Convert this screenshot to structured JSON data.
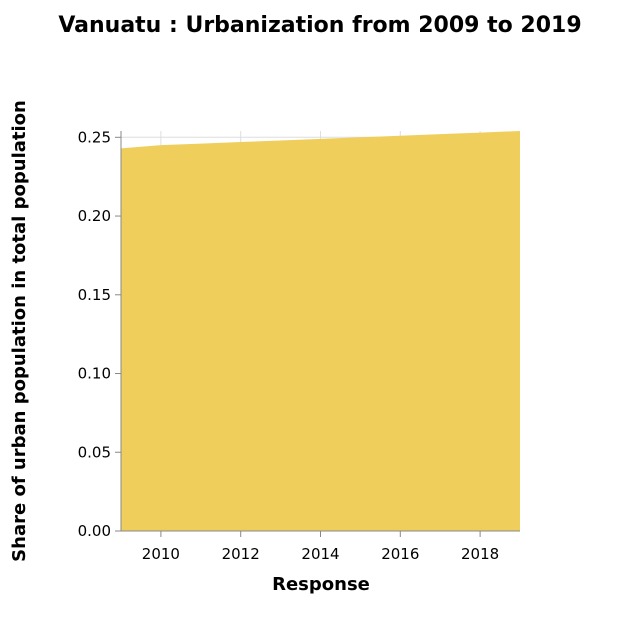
{
  "chart_data": {
    "type": "area",
    "title": "Vanuatu : Urbanization from 2009 to 2019",
    "xlabel": "Response",
    "ylabel": "Share of urban population in total population",
    "x": [
      2009,
      2010,
      2011,
      2012,
      2013,
      2014,
      2015,
      2016,
      2017,
      2018,
      2019
    ],
    "series": [
      {
        "values": [
          0.243,
          0.245,
          0.246,
          0.247,
          0.248,
          0.249,
          0.25,
          0.251,
          0.252,
          0.253,
          0.254
        ]
      }
    ],
    "xlim": [
      2009,
      2019
    ],
    "ylim": [
      0,
      0.254
    ],
    "x_ticks": [
      2010,
      2012,
      2014,
      2016,
      2018
    ],
    "x_tick_labels": [
      "2010",
      "2012",
      "2014",
      "2016",
      "2018"
    ],
    "y_ticks": [
      0,
      0.05,
      0.1,
      0.15,
      0.2,
      0.25
    ],
    "y_tick_labels": [
      "0.00",
      "0.05",
      "0.10",
      "0.15",
      "0.20",
      "0.25"
    ],
    "grid": true,
    "legend": "none",
    "colors": {
      "area_fill": "#f0ce5c",
      "grid": "#dedede",
      "axis": "#888888"
    }
  }
}
